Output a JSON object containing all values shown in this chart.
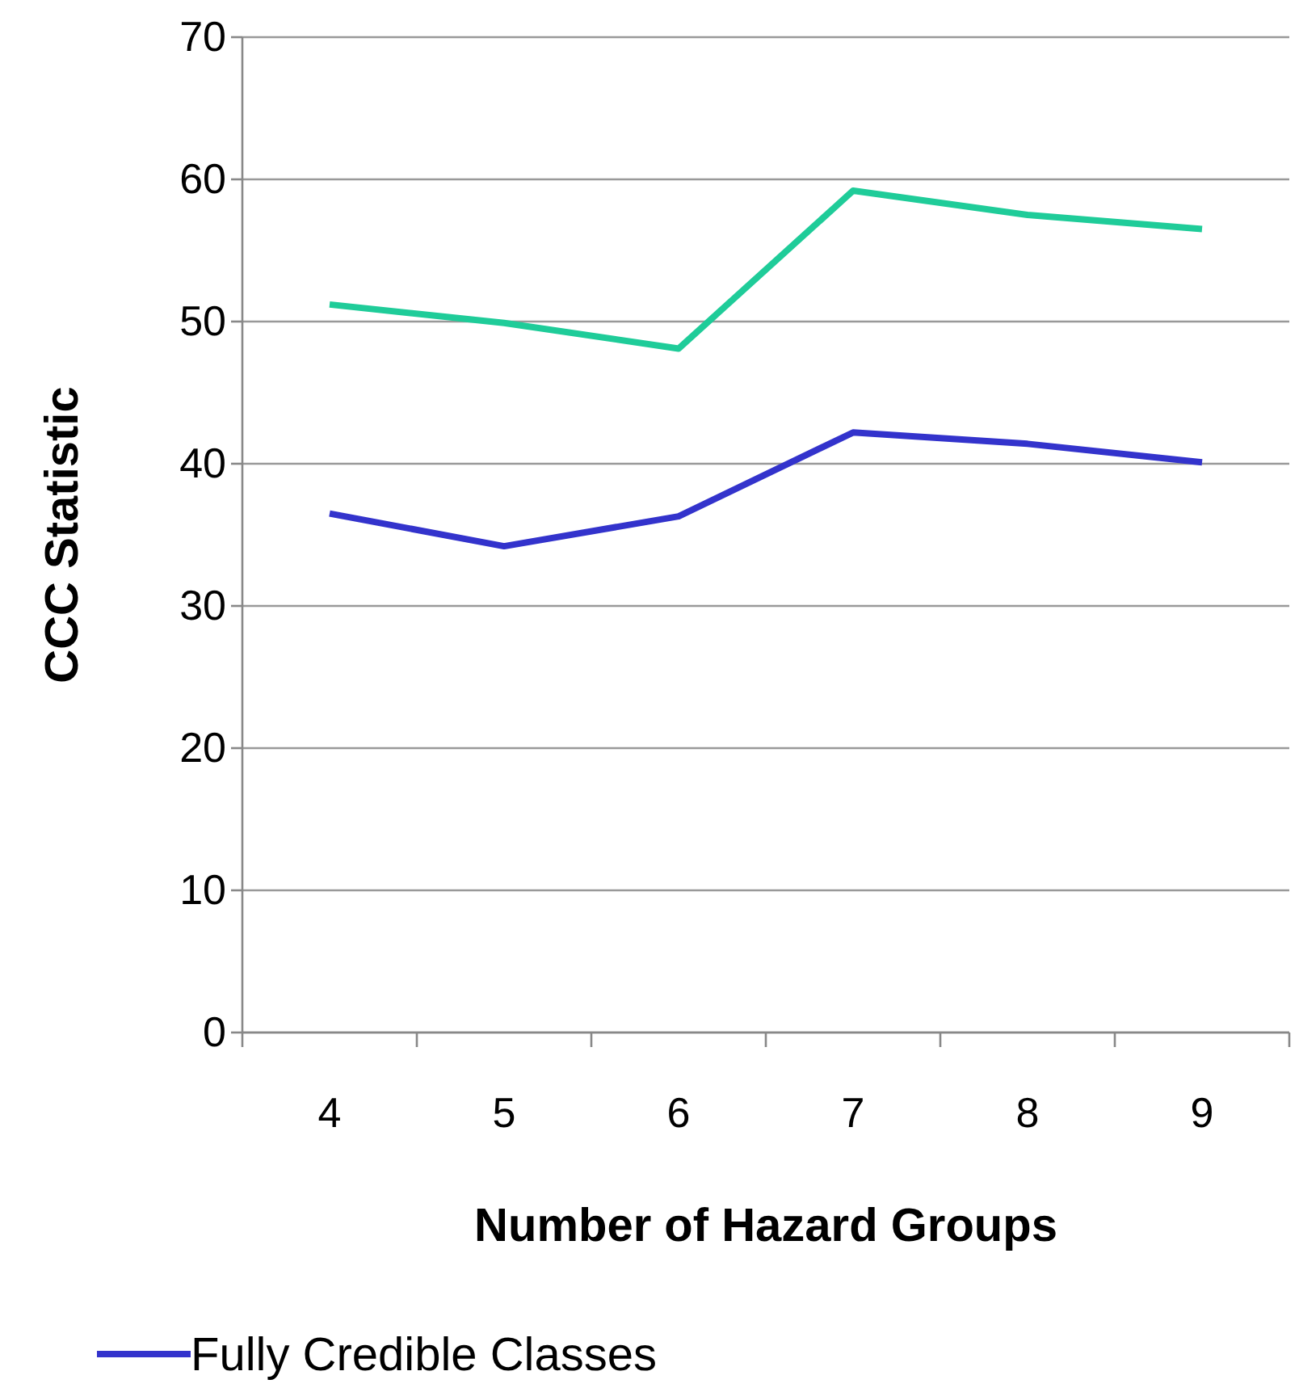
{
  "chart_data": {
    "type": "line",
    "xlabel": "Number of Hazard Groups",
    "ylabel": "CCC Statistic",
    "categories": [
      "4",
      "5",
      "6",
      "7",
      "8",
      "9"
    ],
    "series": [
      {
        "name": "Fully Credible Classes",
        "color": "#3333cc",
        "values": [
          36.5,
          34.2,
          36.3,
          42.2,
          41.4,
          40.1
        ]
      },
      {
        "color": "#1fcc99",
        "values": [
          51.2,
          49.9,
          48.1,
          59.2,
          57.5,
          56.5
        ]
      }
    ],
    "ylim": [
      0,
      70
    ],
    "yticks": [
      0,
      10,
      20,
      30,
      40,
      50,
      60,
      70
    ],
    "grid": "y",
    "legend": "bottom",
    "marker": "none",
    "line_style": "solid"
  }
}
